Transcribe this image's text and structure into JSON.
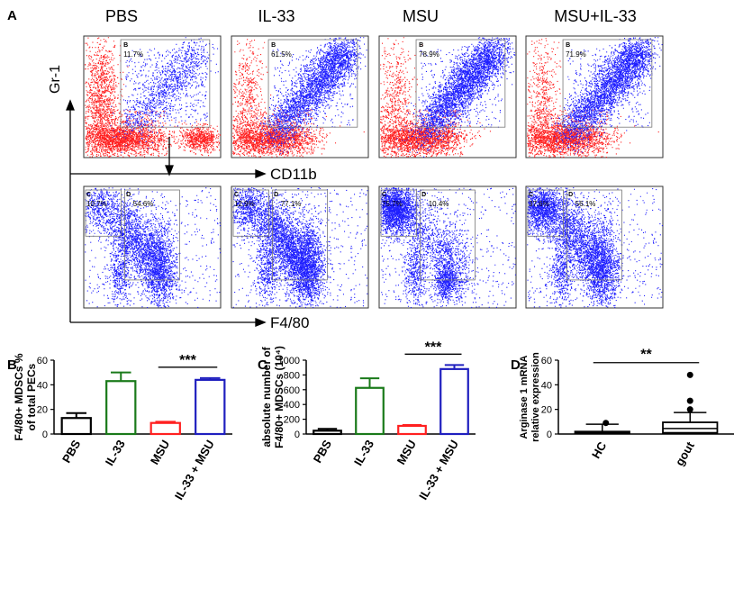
{
  "panel_letters": {
    "a": "A",
    "b": "B",
    "c": "C",
    "d": "D"
  },
  "flow": {
    "conditions": [
      "PBS",
      "IL-33",
      "MSU",
      "MSU+IL-33"
    ],
    "gate_b_label": "B",
    "gate_b_pct": [
      "11.7%",
      "61.5%",
      "78.9%",
      "71.9%"
    ],
    "gate_c_label": "C",
    "gate_d_label": "D",
    "gate_c_pct": [
      "10.7%",
      "12.9%",
      "75.7%",
      "37.6%"
    ],
    "gate_d_pct": [
      "54.6%",
      "77.1%",
      "10.4%",
      "56.1%"
    ],
    "y_axis_label": "Gr-1",
    "x_axis_label_top": "CD11b",
    "x_axis_label_bottom": "F4/80",
    "colors": {
      "blue": "#1f1fff",
      "red": "#ff2020"
    }
  },
  "chart_data": [
    {
      "id": "B",
      "type": "bar",
      "categories": [
        "PBS",
        "IL-33",
        "MSU",
        "IL-33 + MSU"
      ],
      "values": [
        13,
        43,
        9,
        44
      ],
      "errors": [
        4,
        7,
        1,
        1.5
      ],
      "colors": [
        "#000000",
        "#1a7a1a",
        "#ff2020",
        "#1f1fbf"
      ],
      "ylabel_line1": "F4/80+ MDSCs %",
      "ylabel_line2": "of total PECs",
      "ylim": [
        0,
        60
      ],
      "yticks": [
        "0",
        "20",
        "40",
        "60"
      ],
      "significance": "***"
    },
    {
      "id": "C",
      "type": "bar",
      "categories": [
        "PBS",
        "IL-33",
        "MSU",
        "IL-33 + MSU"
      ],
      "values": [
        45,
        625,
        110,
        880
      ],
      "errors": [
        25,
        130,
        12,
        55
      ],
      "colors": [
        "#000000",
        "#1a7a1a",
        "#ff2020",
        "#1f1fbf"
      ],
      "ylabel_line1": "absolute number of",
      "ylabel_line2": "F4/80+ MDSCs (10⁴)",
      "ylim": [
        0,
        1000
      ],
      "yticks": [
        "0",
        "200",
        "400",
        "600",
        "800",
        "1000"
      ],
      "significance": "***"
    },
    {
      "id": "D",
      "type": "box",
      "categories": [
        "HC",
        "gout"
      ],
      "boxes": [
        {
          "whisker_low": 0,
          "q1": 0.3,
          "median": 1.2,
          "q3": 2,
          "whisker_high": 8,
          "outliers": [
            9
          ]
        },
        {
          "whisker_low": 0,
          "q1": 1,
          "median": 4.5,
          "q3": 9.5,
          "whisker_high": 17.5,
          "outliers": [
            20,
            27,
            48
          ]
        }
      ],
      "ylabel_line1": "Arginase 1 mRNA",
      "ylabel_line2": "relative expression",
      "ylim": [
        0,
        60
      ],
      "yticks": [
        "0",
        "20",
        "40",
        "60"
      ],
      "significance": "**"
    }
  ]
}
